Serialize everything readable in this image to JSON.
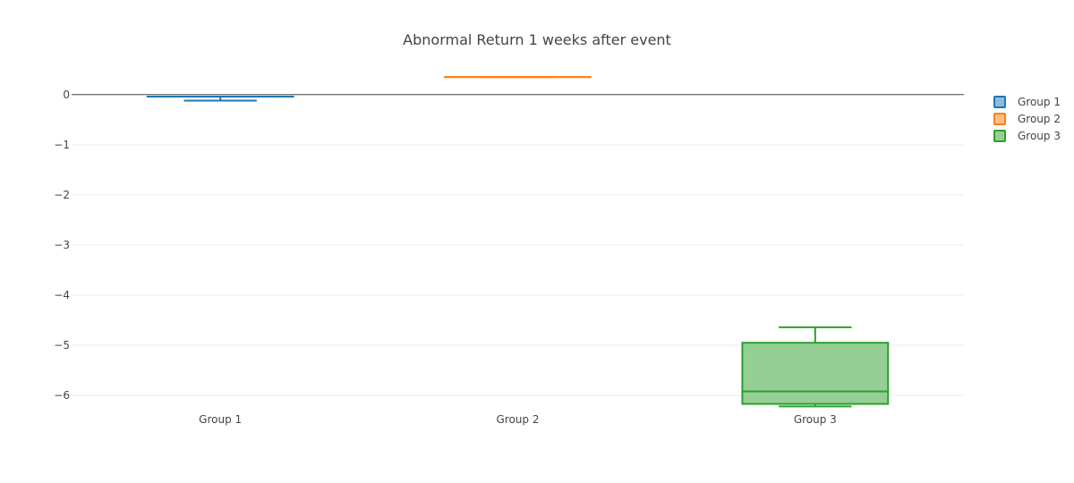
{
  "chart_data": {
    "type": "box",
    "title": "Abnormal Return 1 weeks after event",
    "xlabel": "",
    "ylabel": "",
    "categories": [
      "Group 1",
      "Group 2",
      "Group 3"
    ],
    "ylim": [
      -6.32,
      0.46
    ],
    "y_ticks": [
      0,
      -1,
      -2,
      -3,
      -4,
      -5,
      -6
    ],
    "y_tick_labels": [
      "0",
      "−1",
      "−2",
      "−3",
      "−4",
      "−5",
      "−6"
    ],
    "grid": true,
    "zero_line": true,
    "legend": {
      "position": "top-right"
    },
    "series": [
      {
        "name": "Group 1",
        "category": "Group 1",
        "color": "#1f77b4",
        "fill": "#8fbbd9",
        "min": -0.12,
        "q1": -0.04,
        "median": -0.04,
        "q3": -0.04,
        "max": -0.04
      },
      {
        "name": "Group 2",
        "category": "Group 2",
        "color": "#ff7f0e",
        "fill": "#ffbf86",
        "min": 0.35,
        "q1": 0.35,
        "median": 0.35,
        "q3": 0.35,
        "max": 0.35
      },
      {
        "name": "Group 3",
        "category": "Group 3",
        "color": "#2ca02c",
        "fill": "#95cf95",
        "min": -6.22,
        "q1": -6.17,
        "median": -5.92,
        "q3": -4.95,
        "max": -4.64
      }
    ]
  }
}
